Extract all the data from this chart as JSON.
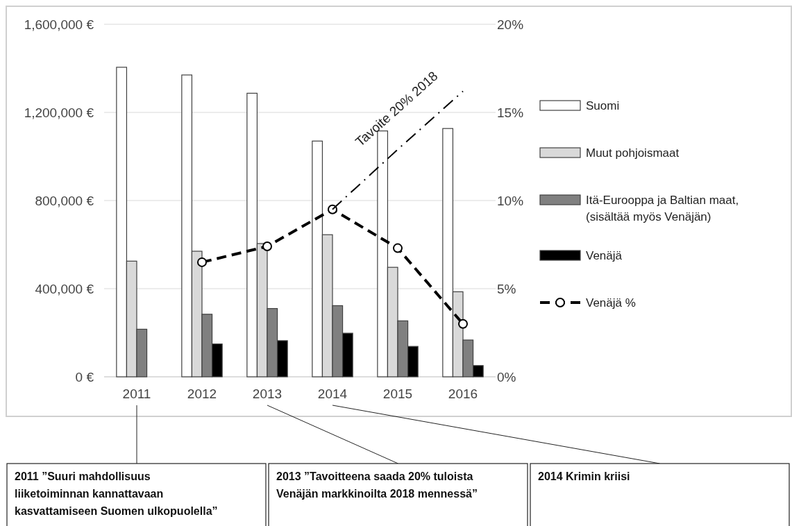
{
  "chart_data": {
    "type": "bar",
    "categories": [
      "2011",
      "2012",
      "2013",
      "2014",
      "2015",
      "2016"
    ],
    "series": [
      {
        "name": "Suomi",
        "color": "#ffffff",
        "values": [
          1405000,
          1370000,
          1287000,
          1070000,
          1116000,
          1127000
        ]
      },
      {
        "name": "Muut pohjoismaat",
        "color": "#d9d9d9",
        "values": [
          525000,
          570000,
          605000,
          645000,
          497000,
          386000
        ]
      },
      {
        "name": "Itä-Eurooppa ja Baltian maat, (sisältää myös Venäjän)",
        "color": "#808080",
        "values": [
          216000,
          284000,
          310000,
          323000,
          254000,
          167000
        ]
      },
      {
        "name": "Venäjä",
        "color": "#000000",
        "values": [
          null,
          149000,
          164000,
          198000,
          138000,
          51000
        ]
      },
      {
        "name": "Venäjä %",
        "type": "line",
        "axis": "y2",
        "color": "#000000",
        "marker": "circle",
        "line_style": "dashed",
        "values": [
          null,
          6.5,
          7.4,
          9.5,
          7.3,
          3.0
        ]
      },
      {
        "name": "Tavoite 20% 2018",
        "type": "line",
        "axis": "y2",
        "color": "#000000",
        "marker": "none",
        "line_style": "dashdot",
        "values": [
          null,
          null,
          null,
          9.5,
          12.9,
          16.2
        ]
      }
    ],
    "ylim": [
      0,
      1600000
    ],
    "yticks": [
      {
        "value": 0,
        "label": "0 €"
      },
      {
        "value": 400000,
        "label": "400,000 €"
      },
      {
        "value": 800000,
        "label": "800,000 €"
      },
      {
        "value": 1200000,
        "label": "1,200,000 €"
      },
      {
        "value": 1600000,
        "label": "1,600,000 €"
      }
    ],
    "y2lim": [
      0,
      20
    ],
    "y2ticks": [
      {
        "value": 0,
        "label": "0%"
      },
      {
        "value": 5,
        "label": "5%"
      },
      {
        "value": 10,
        "label": "10%"
      },
      {
        "value": 15,
        "label": "15%"
      },
      {
        "value": 20,
        "label": "20%"
      }
    ],
    "grid": "y",
    "legend": "right",
    "annotations": [
      "2011 ”Suuri mahdollisuus liiketoiminnan kannattavaan kasvattamiseen Suomen ulkopuolella”",
      "2013 ”Tavoitteena saada 20% tuloista Venäjän markkinoilta 2018 mennessä”",
      "2014 Krimin kriisi"
    ]
  }
}
